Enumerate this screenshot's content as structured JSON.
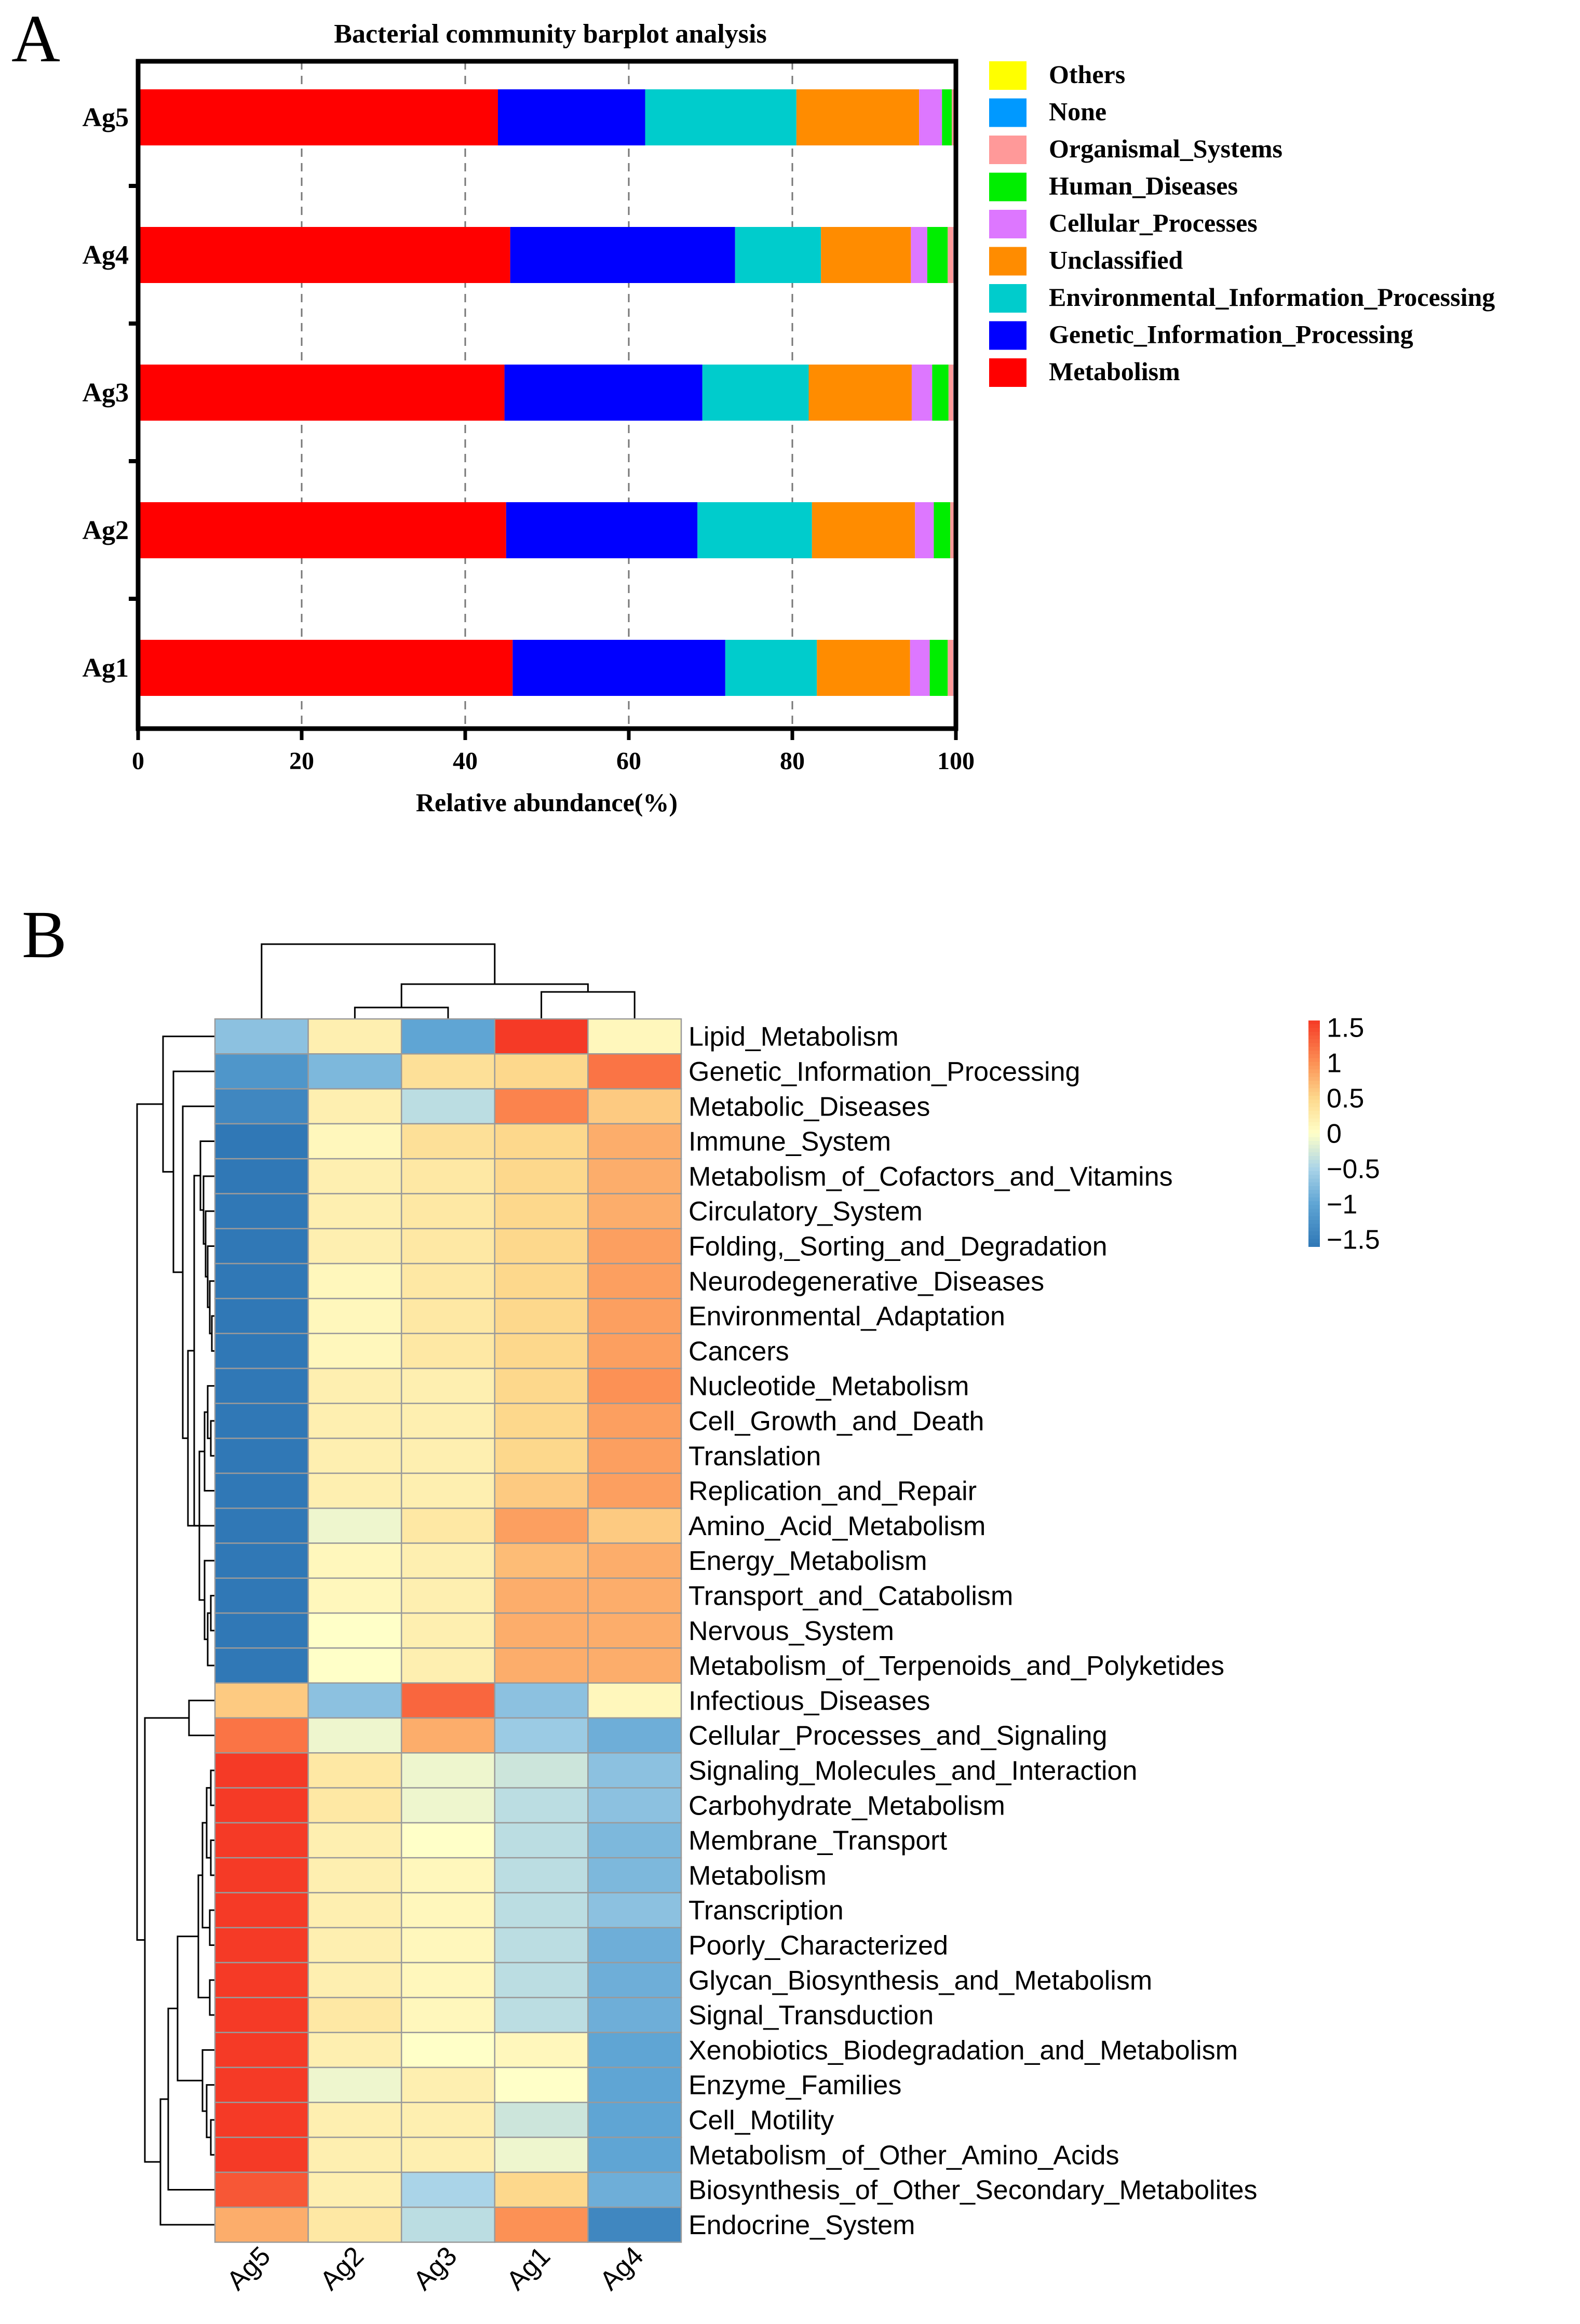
{
  "chart_data": [
    {
      "type": "bar",
      "orientation": "horizontal",
      "stacked": true,
      "panel_label": "A",
      "title": "Bacterial community barplot  analysis",
      "xlabel": "Relative abundance(%)",
      "ylabel": "",
      "xlim": [
        0,
        100
      ],
      "x_ticks": [
        "0",
        "20",
        "40",
        "60",
        "80",
        "100"
      ],
      "grid": "dashed vertical at 20, 40, 60, 80",
      "legend_position": "right",
      "categories": [
        "Ag5",
        "Ag4",
        "Ag3",
        "Ag2",
        "Ag1"
      ],
      "series": [
        {
          "name": "Metabolism",
          "color": "#ff0000",
          "values": [
            44.0,
            45.5,
            44.8,
            45.0,
            45.8
          ]
        },
        {
          "name": "Genetic_Information_Processing",
          "color": "#0000ff",
          "values": [
            18.0,
            27.5,
            24.2,
            23.4,
            26.0
          ]
        },
        {
          "name": "Environmental_Information_Processing",
          "color": "#00cccc",
          "values": [
            18.5,
            10.5,
            13.0,
            14.0,
            11.2
          ]
        },
        {
          "name": "Unclassified",
          "color": "#ff8c00",
          "values": [
            15.0,
            11.0,
            12.6,
            12.6,
            11.4
          ]
        },
        {
          "name": "Cellular_Processes",
          "color": "#dd77ff",
          "values": [
            2.8,
            2.0,
            2.5,
            2.3,
            2.4
          ]
        },
        {
          "name": "Human_Diseases",
          "color": "#00ee00",
          "values": [
            1.2,
            2.5,
            2.0,
            2.0,
            2.2
          ]
        },
        {
          "name": "Organismal_Systems",
          "color": "#ff9999",
          "values": [
            0.3,
            0.7,
            0.6,
            0.5,
            0.7
          ]
        },
        {
          "name": "None",
          "color": "#0099ff",
          "values": [
            0.1,
            0.2,
            0.2,
            0.1,
            0.2
          ]
        },
        {
          "name": "Others",
          "color": "#ffff00",
          "values": [
            0.1,
            0.1,
            0.1,
            0.1,
            0.1
          ]
        }
      ],
      "legend_order": [
        "Others",
        "None",
        "Organismal_Systems",
        "Human_Diseases",
        "Cellular_Processes",
        "Unclassified",
        "Environmental_Information_Processing",
        "Genetic_Information_Processing",
        "Metabolism"
      ]
    },
    {
      "type": "heatmap",
      "panel_label": "B",
      "columns": [
        "Ag5",
        "Ag2",
        "Ag3",
        "Ag1",
        "Ag4"
      ],
      "colorbar": {
        "ticks": [
          "1.5",
          "1",
          "0.5",
          "0",
          "−0.5",
          "−1",
          "−1.5"
        ],
        "vmin": -1.6,
        "vmax": 1.6
      },
      "rows": [
        {
          "label": "Lipid_Metabolism",
          "values": [
            -0.7,
            0.2,
            -1.0,
            1.6,
            0.1
          ]
        },
        {
          "label": "Genetic_Information_Processing",
          "values": [
            -1.2,
            -0.8,
            0.4,
            0.5,
            1.2
          ]
        },
        {
          "label": "Metabolic_Diseases",
          "values": [
            -1.4,
            0.2,
            -0.4,
            1.1,
            0.6
          ]
        },
        {
          "label": "Immune_System",
          "values": [
            -1.8,
            0.1,
            0.4,
            0.5,
            0.8
          ]
        },
        {
          "label": "Metabolism_of_Cofactors_and_Vitamins",
          "values": [
            -1.8,
            0.2,
            0.3,
            0.5,
            0.8
          ]
        },
        {
          "label": "Circulatory_System",
          "values": [
            -1.8,
            0.2,
            0.3,
            0.5,
            0.8
          ]
        },
        {
          "label": "Folding,_Sorting_and_Degradation",
          "values": [
            -1.8,
            0.2,
            0.3,
            0.5,
            0.9
          ]
        },
        {
          "label": "Neurodegenerative_Diseases",
          "values": [
            -1.8,
            0.1,
            0.3,
            0.5,
            0.9
          ]
        },
        {
          "label": "Environmental_Adaptation",
          "values": [
            -1.8,
            0.1,
            0.3,
            0.5,
            0.9
          ]
        },
        {
          "label": "Cancers",
          "values": [
            -1.8,
            0.1,
            0.3,
            0.5,
            0.9
          ]
        },
        {
          "label": "Nucleotide_Metabolism",
          "values": [
            -1.7,
            0.2,
            0.2,
            0.5,
            1.0
          ]
        },
        {
          "label": "Cell_Growth_and_Death",
          "values": [
            -1.7,
            0.2,
            0.2,
            0.5,
            0.9
          ]
        },
        {
          "label": "Translation",
          "values": [
            -1.7,
            0.2,
            0.2,
            0.5,
            0.9
          ]
        },
        {
          "label": "Replication_and_Repair",
          "values": [
            -1.7,
            0.2,
            0.2,
            0.6,
            0.9
          ]
        },
        {
          "label": "Amino_Acid_Metabolism",
          "values": [
            -1.6,
            -0.1,
            0.3,
            0.9,
            0.6
          ]
        },
        {
          "label": "Energy_Metabolism",
          "values": [
            -1.7,
            0.1,
            0.2,
            0.7,
            0.8
          ]
        },
        {
          "label": "Transport_and_Catabolism",
          "values": [
            -1.7,
            0.1,
            0.2,
            0.8,
            0.8
          ]
        },
        {
          "label": "Nervous_System",
          "values": [
            -1.7,
            0.0,
            0.2,
            0.8,
            0.8
          ]
        },
        {
          "label": "Metabolism_of_Terpenoids_and_Polyketides",
          "values": [
            -1.6,
            0.0,
            0.2,
            0.8,
            0.8
          ]
        },
        {
          "label": "Infectious_Diseases",
          "values": [
            0.6,
            -0.7,
            1.3,
            -0.7,
            0.1
          ]
        },
        {
          "label": "Cellular_Processes_and_Signaling",
          "values": [
            1.2,
            -0.1,
            0.8,
            -0.6,
            -0.9
          ]
        },
        {
          "label": "Signaling_Molecules_and_Interaction",
          "values": [
            1.6,
            0.3,
            -0.1,
            -0.3,
            -0.7
          ]
        },
        {
          "label": "Carbohydrate_Metabolism",
          "values": [
            1.6,
            0.3,
            -0.1,
            -0.4,
            -0.7
          ]
        },
        {
          "label": "Membrane_Transport",
          "values": [
            1.6,
            0.2,
            0.0,
            -0.4,
            -0.8
          ]
        },
        {
          "label": "Metabolism",
          "values": [
            1.6,
            0.2,
            0.1,
            -0.4,
            -0.8
          ]
        },
        {
          "label": "Transcription",
          "values": [
            1.6,
            0.2,
            0.1,
            -0.4,
            -0.7
          ]
        },
        {
          "label": "Poorly_Characterized",
          "values": [
            1.6,
            0.2,
            0.1,
            -0.4,
            -0.9
          ]
        },
        {
          "label": "Glycan_Biosynthesis_and_Metabolism",
          "values": [
            1.6,
            0.2,
            0.1,
            -0.4,
            -0.9
          ]
        },
        {
          "label": "Signal_Transduction",
          "values": [
            1.6,
            0.3,
            0.1,
            -0.4,
            -0.9
          ]
        },
        {
          "label": "Xenobiotics_Biodegradation_and_Metabolism",
          "values": [
            1.6,
            0.2,
            0.0,
            0.1,
            -1.0
          ]
        },
        {
          "label": "Enzyme_Families",
          "values": [
            1.6,
            -0.1,
            0.2,
            0.0,
            -1.0
          ]
        },
        {
          "label": "Cell_Motility",
          "values": [
            1.6,
            0.2,
            0.2,
            -0.3,
            -1.0
          ]
        },
        {
          "label": "Metabolism_of_Other_Amino_Acids",
          "values": [
            1.6,
            0.2,
            0.2,
            -0.1,
            -1.0
          ]
        },
        {
          "label": "Biosynthesis_of_Other_Secondary_Metabolites",
          "values": [
            1.4,
            0.2,
            -0.5,
            0.5,
            -0.9
          ]
        },
        {
          "label": "Endocrine_System",
          "values": [
            0.8,
            0.3,
            -0.4,
            1.0,
            -1.4
          ]
        }
      ]
    }
  ]
}
